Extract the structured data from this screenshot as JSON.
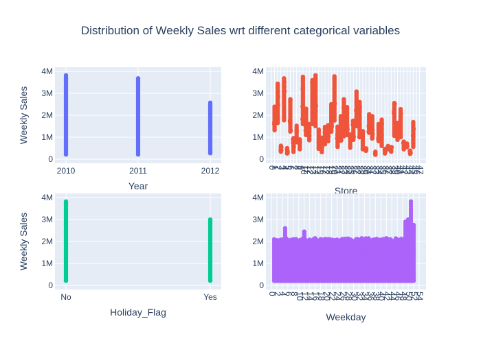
{
  "title": "Distribution of Weekly Sales wrt different categorical variables",
  "chart_data": [
    {
      "type": "scatter",
      "id": "year",
      "xlabel": "Year",
      "ylabel": "Weekly Sales",
      "x_type": "category",
      "categories": [
        "2010",
        "2011",
        "2012"
      ],
      "color": "#636efa",
      "ylim": [
        0,
        4000000
      ],
      "yticks": [
        0,
        1000000,
        2000000,
        3000000,
        4000000
      ],
      "ytick_labels": [
        "0",
        "1M",
        "2M",
        "3M",
        "4M"
      ],
      "ranges": [
        {
          "x": "2010",
          "min": 210000,
          "max": 3820000
        },
        {
          "x": "2011",
          "min": 210000,
          "max": 3680000
        },
        {
          "x": "2012",
          "min": 270000,
          "max": 2570000
        }
      ],
      "grid": true
    },
    {
      "type": "scatter",
      "id": "store",
      "xlabel": "Store",
      "ylabel": "",
      "x_type": "linear",
      "xlim": [
        0,
        46
      ],
      "xticks": [
        0,
        1,
        2,
        3,
        4,
        5,
        6,
        7,
        8,
        9,
        10,
        11,
        12,
        13,
        14,
        15,
        16,
        17,
        18,
        19,
        20,
        21,
        22,
        23,
        24,
        25,
        26,
        27,
        28,
        29,
        30,
        31,
        32,
        33,
        34,
        35,
        36,
        37,
        38,
        39,
        40,
        41,
        42,
        43,
        44,
        45,
        46,
        47
      ],
      "color": "#ef553b",
      "ylim": [
        0,
        4000000
      ],
      "yticks": [
        0,
        1000000,
        2000000,
        3000000,
        4000000
      ],
      "ytick_labels": [
        "0",
        "1M",
        "2M",
        "3M",
        "4M"
      ],
      "ranges": [
        {
          "x": 1,
          "min": 1320000,
          "max": 2390000
        },
        {
          "x": 2,
          "min": 1650000,
          "max": 3440000
        },
        {
          "x": 3,
          "min": 340000,
          "max": 610000
        },
        {
          "x": 4,
          "min": 1770000,
          "max": 3680000
        },
        {
          "x": 5,
          "min": 260000,
          "max": 500000
        },
        {
          "x": 6,
          "min": 1260000,
          "max": 2730000
        },
        {
          "x": 7,
          "min": 330000,
          "max": 960000
        },
        {
          "x": 8,
          "min": 770000,
          "max": 1520000
        },
        {
          "x": 9,
          "min": 450000,
          "max": 900000
        },
        {
          "x": 10,
          "min": 1600000,
          "max": 3750000
        },
        {
          "x": 11,
          "min": 1100000,
          "max": 2300000
        },
        {
          "x": 12,
          "min": 860000,
          "max": 1600000
        },
        {
          "x": 13,
          "min": 1600000,
          "max": 3600000
        },
        {
          "x": 14,
          "min": 1500000,
          "max": 3820000
        },
        {
          "x": 15,
          "min": 470000,
          "max": 1350000
        },
        {
          "x": 16,
          "min": 320000,
          "max": 980000
        },
        {
          "x": 17,
          "min": 680000,
          "max": 1470000
        },
        {
          "x": 18,
          "min": 820000,
          "max": 1550000
        },
        {
          "x": 19,
          "min": 1250000,
          "max": 2500000
        },
        {
          "x": 20,
          "min": 1760000,
          "max": 3770000
        },
        {
          "x": 21,
          "min": 560000,
          "max": 1480000
        },
        {
          "x": 22,
          "min": 840000,
          "max": 1960000
        },
        {
          "x": 23,
          "min": 1040000,
          "max": 2730000
        },
        {
          "x": 24,
          "min": 1100000,
          "max": 2370000
        },
        {
          "x": 25,
          "min": 520000,
          "max": 1130000
        },
        {
          "x": 26,
          "min": 880000,
          "max": 1750000
        },
        {
          "x": 27,
          "min": 1500000,
          "max": 3080000
        },
        {
          "x": 28,
          "min": 1000000,
          "max": 2600000
        },
        {
          "x": 29,
          "min": 450000,
          "max": 1270000
        },
        {
          "x": 30,
          "min": 380000,
          "max": 490000
        },
        {
          "x": 31,
          "min": 1200000,
          "max": 2050000
        },
        {
          "x": 32,
          "min": 940000,
          "max": 1960000
        },
        {
          "x": 33,
          "min": 200000,
          "max": 340000
        },
        {
          "x": 34,
          "min": 820000,
          "max": 1600000
        },
        {
          "x": 35,
          "min": 600000,
          "max": 1800000
        },
        {
          "x": 36,
          "min": 260000,
          "max": 460000
        },
        {
          "x": 37,
          "min": 450000,
          "max": 600000
        },
        {
          "x": 38,
          "min": 340000,
          "max": 550000
        },
        {
          "x": 39,
          "min": 1060000,
          "max": 2560000
        },
        {
          "x": 40,
          "min": 880000,
          "max": 1650000
        },
        {
          "x": 41,
          "min": 1000000,
          "max": 2280000
        },
        {
          "x": 42,
          "min": 450000,
          "max": 800000
        },
        {
          "x": 43,
          "min": 550000,
          "max": 710000
        },
        {
          "x": 44,
          "min": 240000,
          "max": 390000
        },
        {
          "x": 45,
          "min": 560000,
          "max": 1690000
        }
      ],
      "grid": true
    },
    {
      "type": "scatter",
      "id": "holiday",
      "xlabel": "Holiday_Flag",
      "ylabel": "Weekly Sales",
      "x_type": "category",
      "categories": [
        "No",
        "Yes"
      ],
      "color": "#00cc96",
      "ylim": [
        0,
        4000000
      ],
      "yticks": [
        0,
        1000000,
        2000000,
        3000000,
        4000000
      ],
      "ytick_labels": [
        "0",
        "1M",
        "2M",
        "3M",
        "4M"
      ],
      "ranges": [
        {
          "x": "No",
          "min": 210000,
          "max": 3820000
        },
        {
          "x": "Yes",
          "min": 210000,
          "max": 3000000
        }
      ],
      "grid": true
    },
    {
      "type": "scatter",
      "id": "weekday",
      "xlabel": "Weekday",
      "ylabel": "",
      "x_type": "linear",
      "xlim": [
        0,
        53
      ],
      "xticks": [
        0,
        2,
        4,
        6,
        8,
        10,
        12,
        14,
        16,
        18,
        20,
        22,
        24,
        26,
        28,
        30,
        32,
        34,
        36,
        38,
        40,
        42,
        44,
        46,
        48,
        50,
        52,
        54
      ],
      "color": "#ab63fa",
      "ylim": [
        0,
        4000000
      ],
      "yticks": [
        0,
        1000000,
        2000000,
        3000000,
        4000000
      ],
      "ytick_labels": [
        "0",
        "1M",
        "2M",
        "3M",
        "4M"
      ],
      "base_min": 210000,
      "base_max": 2150000,
      "peaks": [
        {
          "x": 5,
          "max": 2600000
        },
        {
          "x": 12,
          "max": 2450000
        },
        {
          "x": 49,
          "max": 2900000
        },
        {
          "x": 50,
          "max": 3000000
        },
        {
          "x": 51,
          "max": 3820000
        },
        {
          "x": 52,
          "max": 2750000
        }
      ],
      "grid": true
    }
  ]
}
